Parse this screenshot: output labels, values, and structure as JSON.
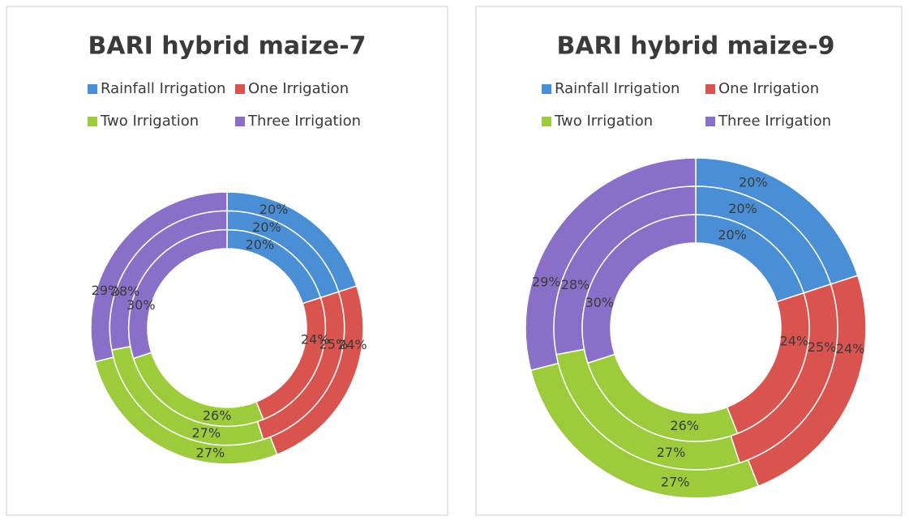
{
  "chart_data": [
    {
      "type": "donut",
      "title": "BARI hybrid maize-7",
      "categories": [
        "Rainfall Irrigation",
        "One Irrigation",
        "Two Irrigation",
        "Three Irrigation"
      ],
      "colors": [
        "#4a8fd6",
        "#d9534f",
        "#9ccc3c",
        "#8a6fc8"
      ],
      "series": [
        {
          "values": [
            20,
            24,
            27,
            29
          ],
          "value_labels": [
            "20%",
            "24%",
            "27%",
            "29%"
          ]
        },
        {
          "values": [
            20,
            25,
            27,
            28
          ],
          "value_labels": [
            "20%",
            "25%",
            "27%",
            "28%"
          ]
        },
        {
          "values": [
            20,
            24,
            26,
            30
          ],
          "value_labels": [
            "20%",
            "24%",
            "26%",
            "30%"
          ]
        }
      ]
    },
    {
      "type": "donut",
      "title": "BARI hybrid maize-9",
      "categories": [
        "Rainfall Irrigation",
        "One Irrigation",
        "Two Irrigation",
        "Three Irrigation"
      ],
      "colors": [
        "#4a8fd6",
        "#d9534f",
        "#9ccc3c",
        "#8a6fc8"
      ],
      "series": [
        {
          "values": [
            20,
            24,
            27,
            29
          ],
          "value_labels": [
            "20%",
            "24%",
            "27%",
            "29%"
          ]
        },
        {
          "values": [
            20,
            25,
            27,
            28
          ],
          "value_labels": [
            "20%",
            "25%",
            "27%",
            "28%"
          ]
        },
        {
          "values": [
            20,
            24,
            26,
            30
          ],
          "value_labels": [
            "20%",
            "24%",
            "26%",
            "30%"
          ]
        }
      ]
    }
  ]
}
